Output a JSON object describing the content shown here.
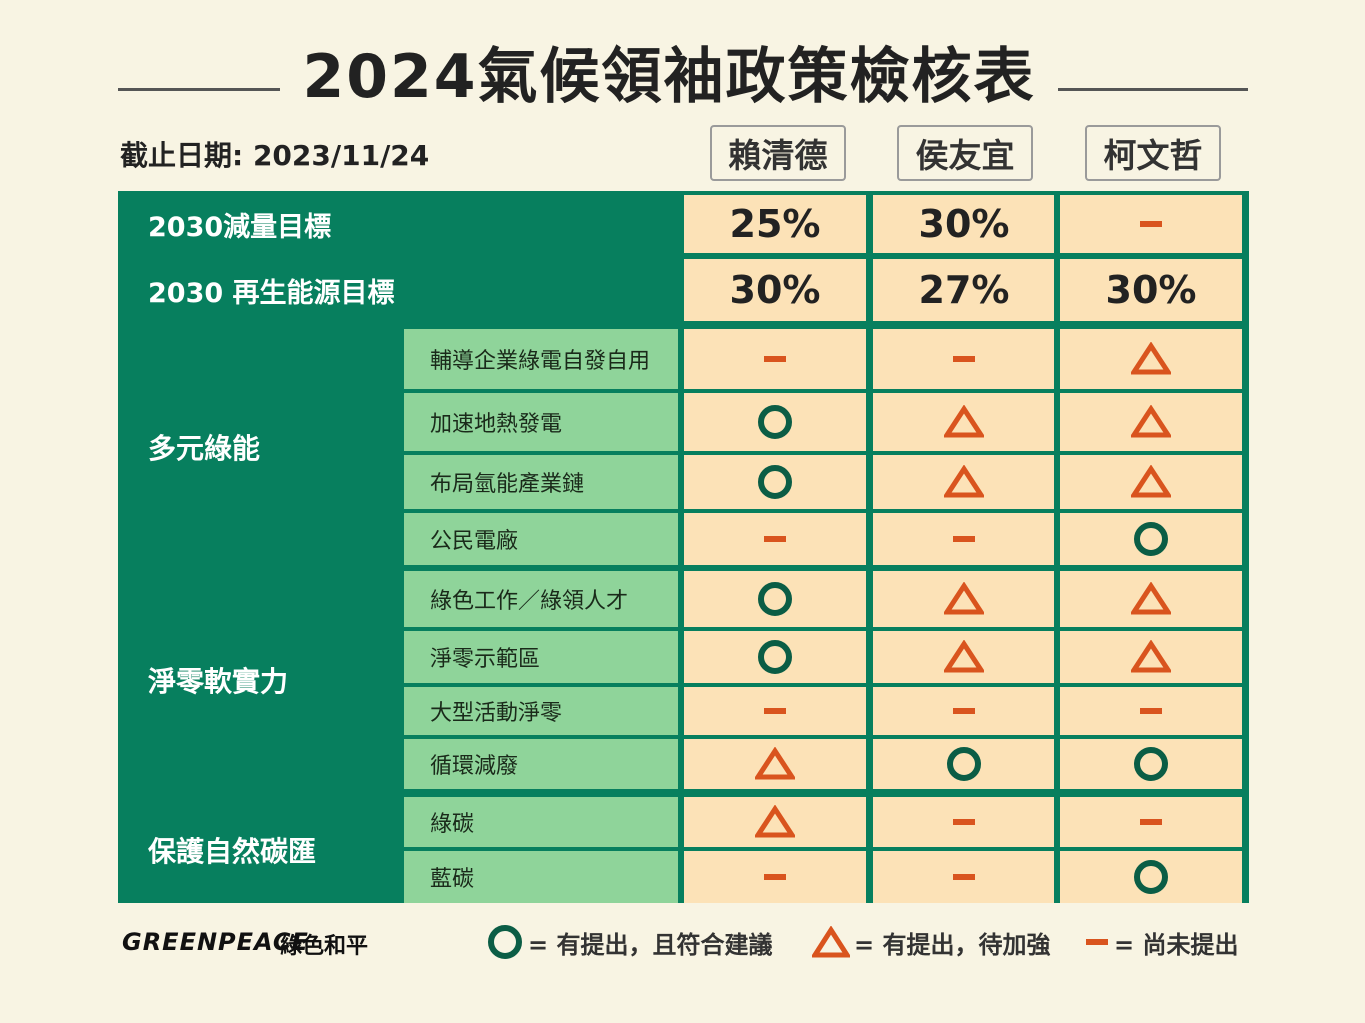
{
  "title": "2024氣候領袖政策檢核表",
  "cutoff_date": "截止日期: 2023/11/24",
  "candidates": [
    "賴清德",
    "侯友宜",
    "柯文哲"
  ],
  "targets": [
    {
      "label": "2030減量目標",
      "values": [
        "25%",
        "30%",
        "—"
      ]
    },
    {
      "label": "2030 再生能源目標",
      "values": [
        "30%",
        "27%",
        "30%"
      ]
    }
  ],
  "groups": [
    {
      "name": "多元綠能",
      "items": [
        {
          "label": "輔導企業綠電自發自用",
          "marks": [
            "dash",
            "dash",
            "triangle"
          ]
        },
        {
          "label": "加速地熱發電",
          "marks": [
            "circle",
            "triangle",
            "triangle"
          ]
        },
        {
          "label": "布局氫能產業鏈",
          "marks": [
            "circle",
            "triangle",
            "triangle"
          ]
        },
        {
          "label": "公民電廠",
          "marks": [
            "dash",
            "dash",
            "circle"
          ]
        }
      ]
    },
    {
      "name": "淨零軟實力",
      "items": [
        {
          "label": "綠色工作／綠領人才",
          "marks": [
            "circle",
            "triangle",
            "triangle"
          ]
        },
        {
          "label": "淨零示範區",
          "marks": [
            "circle",
            "triangle",
            "triangle"
          ]
        },
        {
          "label": "大型活動淨零",
          "marks": [
            "dash",
            "dash",
            "dash"
          ]
        },
        {
          "label": "循環減廢",
          "marks": [
            "triangle",
            "circle",
            "circle"
          ]
        }
      ]
    },
    {
      "name": "保護自然碳匯",
      "items": [
        {
          "label": "綠碳",
          "marks": [
            "triangle",
            "dash",
            "dash"
          ]
        },
        {
          "label": "藍碳",
          "marks": [
            "dash",
            "dash",
            "circle"
          ]
        }
      ]
    }
  ],
  "legend": {
    "circle": "= 有提出，且符合建議",
    "triangle": "= 有提出，待加強",
    "dash": "= 尚未提出"
  },
  "brand": {
    "logo_text": "GREENPEACE",
    "name_zh": "綠色和平"
  },
  "colors": {
    "dark_green": "#077f5e",
    "light_green": "#8fd49a",
    "cell_bg": "#fce2b7",
    "circle": "#0b5d45",
    "orange": "#d9541e",
    "background": "#f8f4e3"
  }
}
